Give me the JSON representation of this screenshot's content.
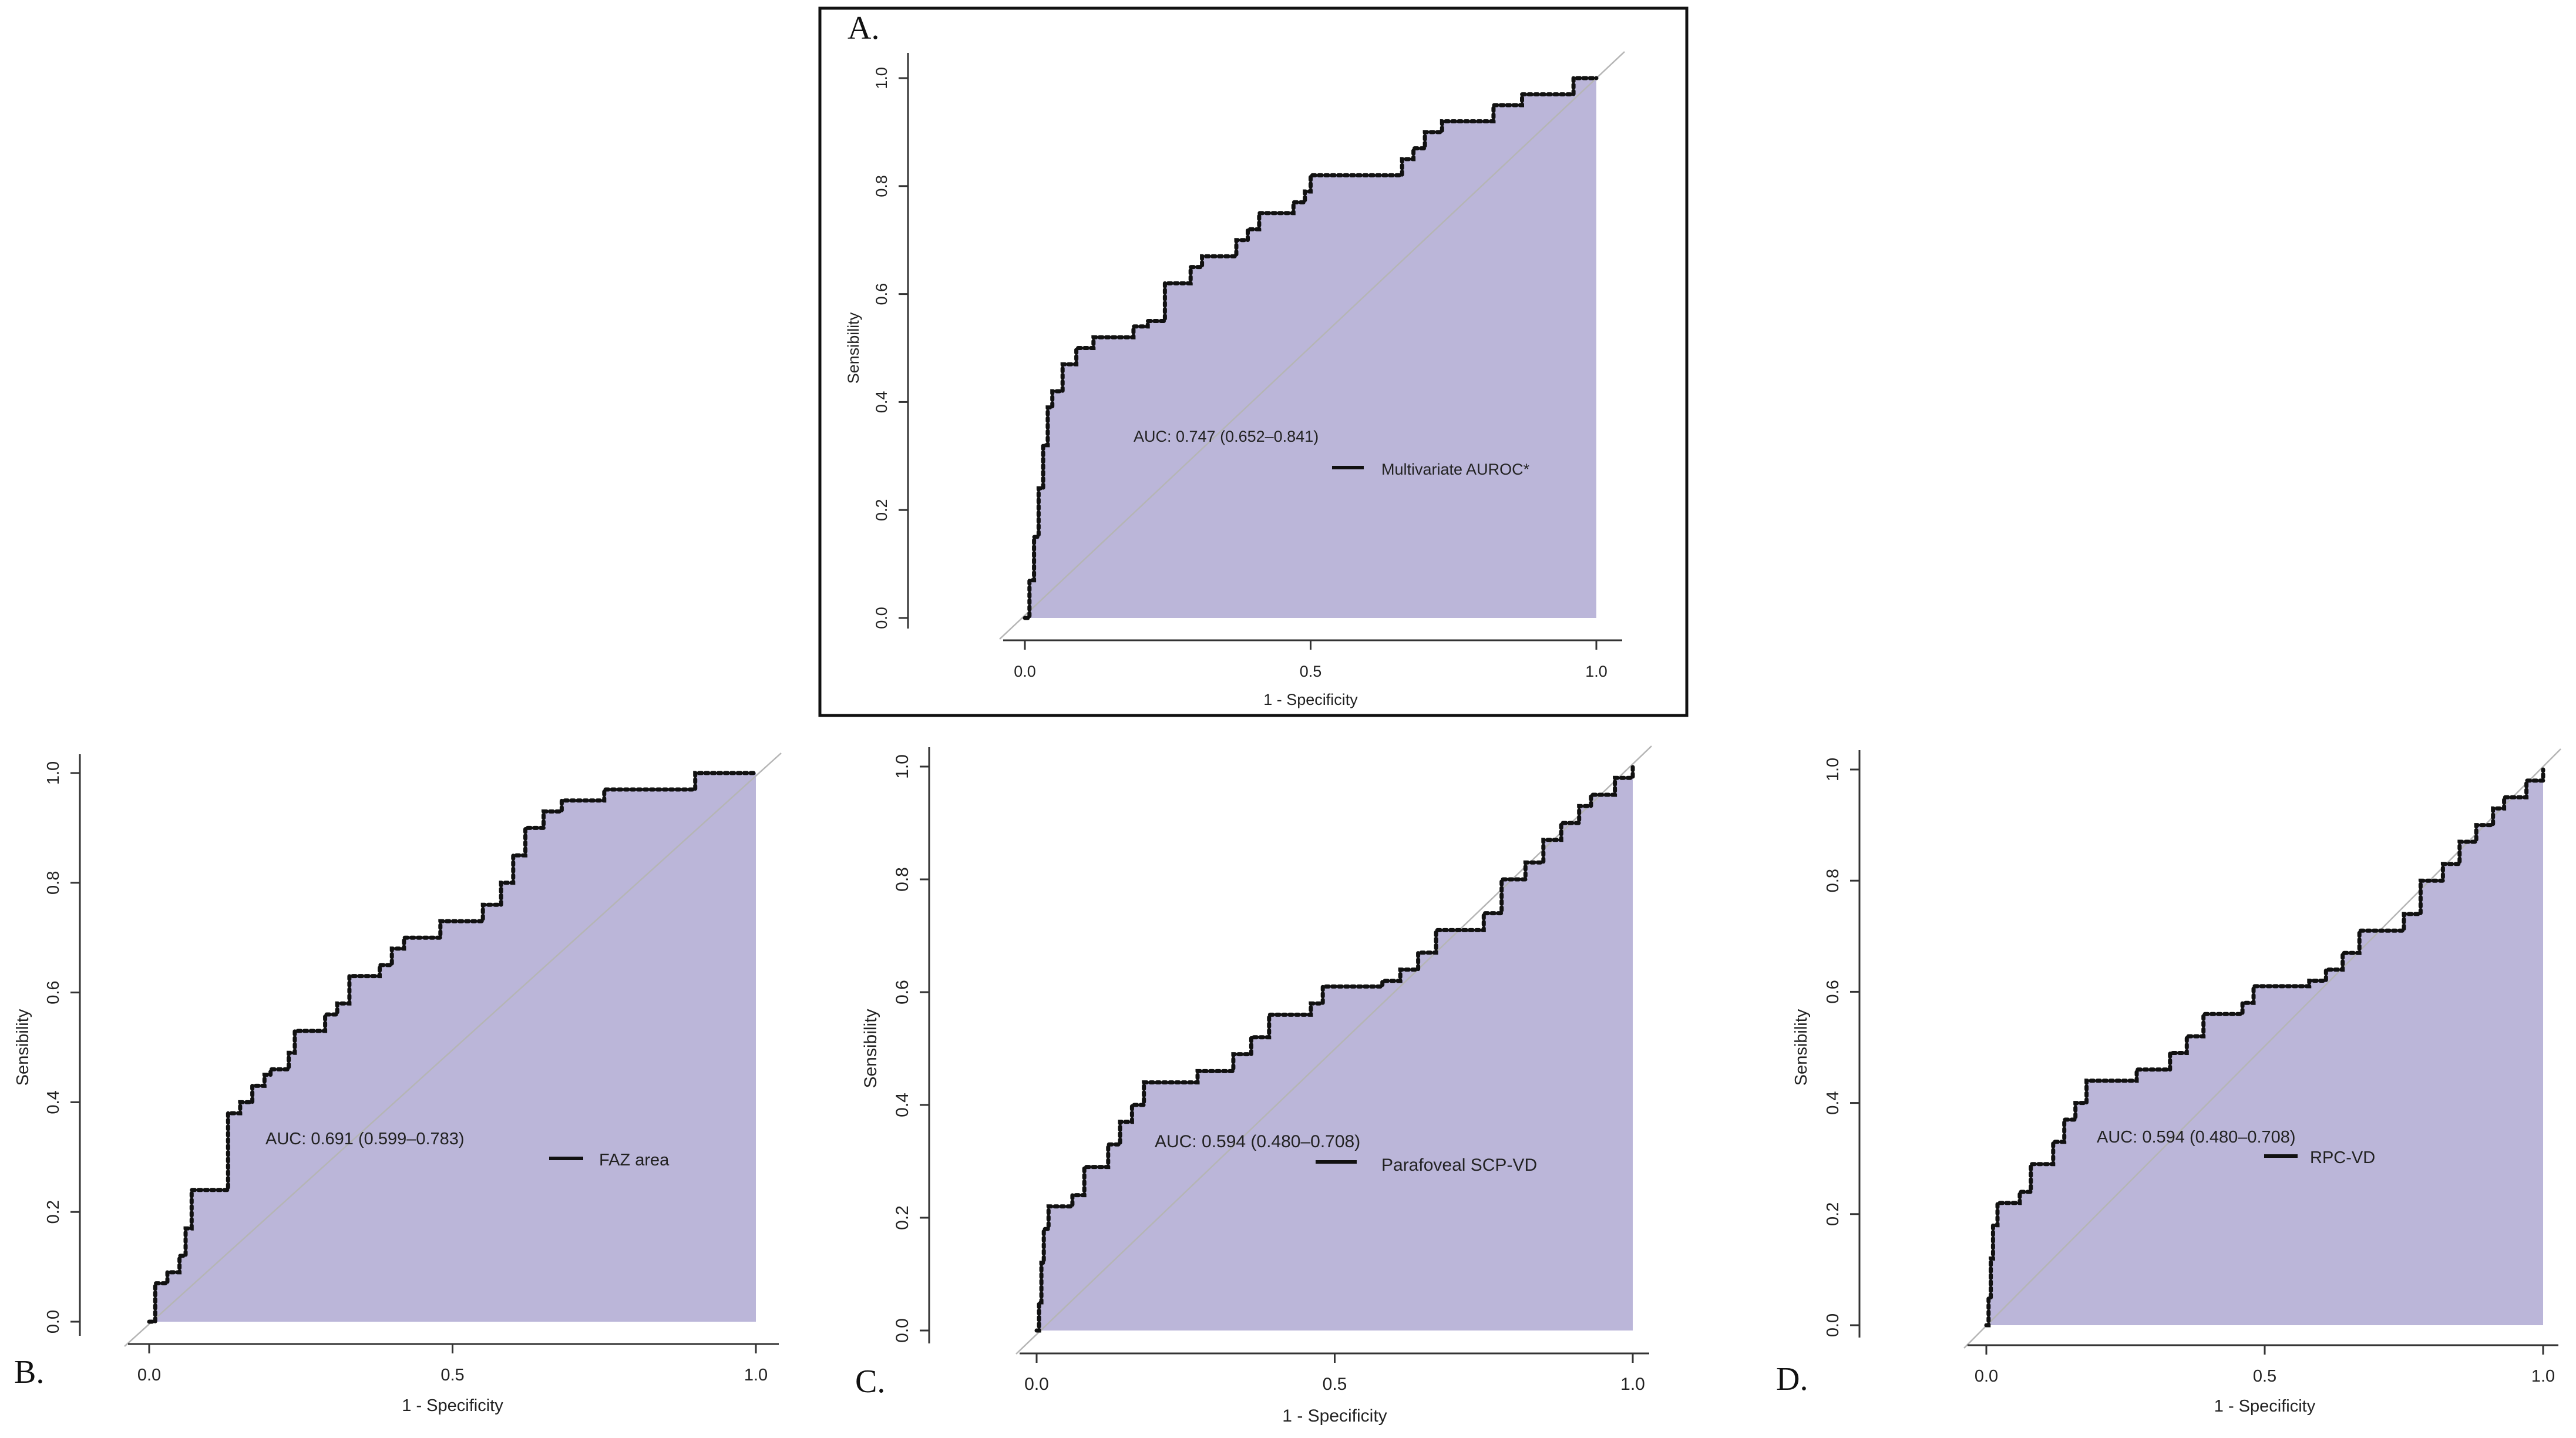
{
  "colors": {
    "fill": "#bbb6d9",
    "curve": "#111111",
    "diagonal": "#b5b5b5",
    "axis": "#333333",
    "frame": "#111111"
  },
  "chart_data": [
    {
      "type": "area",
      "panel_label": "A.",
      "xlabel": "1 - Specificity",
      "ylabel": "Sensibility",
      "xlim": [
        0,
        1
      ],
      "ylim": [
        0,
        1
      ],
      "x_ticks": [
        "0.0",
        "0.5",
        "1.0"
      ],
      "y_ticks": [
        "0.0",
        "0.2",
        "0.4",
        "0.6",
        "0.8",
        "1.0"
      ],
      "annotation": "AUC: 0.747 (0.652–0.841)",
      "legend": "Multivariate AUROC*",
      "series": [
        {
          "x": [
            0,
            0.008,
            0.016,
            0.024,
            0.032,
            0.04,
            0.048,
            0.066,
            0.09,
            0.12,
            0.17,
            0.19,
            0.215,
            0.245,
            0.26,
            0.29,
            0.31,
            0.33,
            0.37,
            0.39,
            0.41,
            0.43,
            0.47,
            0.49,
            0.5,
            0.56,
            0.6,
            0.64,
            0.66,
            0.68,
            0.7,
            0.73,
            0.78,
            0.82,
            0.84,
            0.87,
            0.94,
            0.96,
            1.0
          ],
          "y": [
            0,
            0.07,
            0.15,
            0.24,
            0.32,
            0.39,
            0.42,
            0.47,
            0.5,
            0.52,
            0.52,
            0.54,
            0.55,
            0.62,
            0.62,
            0.65,
            0.67,
            0.67,
            0.7,
            0.72,
            0.75,
            0.75,
            0.77,
            0.79,
            0.82,
            0.82,
            0.82,
            0.82,
            0.85,
            0.87,
            0.9,
            0.92,
            0.92,
            0.95,
            0.95,
            0.97,
            0.97,
            1.0,
            1.0
          ]
        }
      ]
    },
    {
      "type": "area",
      "panel_label": "B.",
      "xlabel": "1 - Specificity",
      "ylabel": "Sensibility",
      "xlim": [
        0,
        1
      ],
      "ylim": [
        0,
        1
      ],
      "x_ticks": [
        "0.0",
        "0.5",
        "1.0"
      ],
      "y_ticks": [
        "0.0",
        "0.2",
        "0.4",
        "0.6",
        "0.8",
        "1.0"
      ],
      "annotation": "AUC: 0.691 (0.599–0.783)",
      "legend": "FAZ area",
      "series": [
        {
          "x": [
            0,
            0.01,
            0.03,
            0.05,
            0.06,
            0.07,
            0.08,
            0.12,
            0.13,
            0.15,
            0.17,
            0.19,
            0.2,
            0.23,
            0.24,
            0.27,
            0.29,
            0.31,
            0.33,
            0.35,
            0.38,
            0.4,
            0.42,
            0.45,
            0.48,
            0.5,
            0.52,
            0.55,
            0.58,
            0.6,
            0.62,
            0.65,
            0.68,
            0.72,
            0.75,
            0.8,
            0.87,
            0.9,
            1.0
          ],
          "y": [
            0,
            0.07,
            0.09,
            0.12,
            0.17,
            0.24,
            0.24,
            0.24,
            0.38,
            0.4,
            0.43,
            0.45,
            0.46,
            0.49,
            0.53,
            0.53,
            0.56,
            0.58,
            0.63,
            0.63,
            0.65,
            0.68,
            0.7,
            0.7,
            0.73,
            0.73,
            0.73,
            0.76,
            0.8,
            0.85,
            0.9,
            0.93,
            0.95,
            0.95,
            0.97,
            0.97,
            0.97,
            1.0,
            1.0
          ]
        }
      ]
    },
    {
      "type": "area",
      "panel_label": "C.",
      "xlabel": "1 - Specificity",
      "ylabel": "Sensibility",
      "xlim": [
        0,
        1
      ],
      "ylim": [
        0,
        1
      ],
      "x_ticks": [
        "0.0",
        "0.5",
        "1.0"
      ],
      "y_ticks": [
        "0.0",
        "0.2",
        "0.4",
        "0.6",
        "0.8",
        "1.0"
      ],
      "annotation": "AUC: 0.594 (0.480–0.708)",
      "legend": "Parafoveal SCP-VD",
      "series": [
        {
          "x": [
            0,
            0.004,
            0.008,
            0.012,
            0.02,
            0.06,
            0.08,
            0.1,
            0.12,
            0.14,
            0.16,
            0.18,
            0.25,
            0.27,
            0.3,
            0.33,
            0.36,
            0.39,
            0.42,
            0.46,
            0.48,
            0.5,
            0.55,
            0.58,
            0.61,
            0.64,
            0.67,
            0.73,
            0.75,
            0.78,
            0.82,
            0.85,
            0.88,
            0.91,
            0.93,
            0.97,
            1.0
          ],
          "y": [
            0,
            0.05,
            0.12,
            0.18,
            0.22,
            0.24,
            0.29,
            0.29,
            0.33,
            0.37,
            0.4,
            0.44,
            0.44,
            0.46,
            0.46,
            0.49,
            0.52,
            0.56,
            0.56,
            0.58,
            0.61,
            0.61,
            0.61,
            0.62,
            0.64,
            0.67,
            0.71,
            0.71,
            0.74,
            0.8,
            0.83,
            0.87,
            0.9,
            0.93,
            0.95,
            0.98,
            1.0
          ]
        }
      ]
    },
    {
      "type": "area",
      "panel_label": "D.",
      "xlabel": "1 - Specificity",
      "ylabel": "Sensibility",
      "xlim": [
        0,
        1
      ],
      "ylim": [
        0,
        1
      ],
      "x_ticks": [
        "0.0",
        "0.5",
        "1.0"
      ],
      "y_ticks": [
        "0.0",
        "0.2",
        "0.4",
        "0.6",
        "0.8",
        "1.0"
      ],
      "annotation": "AUC: 0.594 (0.480–0.708)",
      "legend": "RPC-VD",
      "series": [
        {
          "x": [
            0,
            0.004,
            0.008,
            0.012,
            0.02,
            0.06,
            0.08,
            0.1,
            0.12,
            0.14,
            0.16,
            0.18,
            0.25,
            0.27,
            0.3,
            0.33,
            0.36,
            0.39,
            0.42,
            0.46,
            0.48,
            0.5,
            0.55,
            0.58,
            0.61,
            0.64,
            0.67,
            0.73,
            0.75,
            0.78,
            0.82,
            0.85,
            0.88,
            0.91,
            0.93,
            0.97,
            1.0
          ],
          "y": [
            0,
            0.05,
            0.12,
            0.18,
            0.22,
            0.24,
            0.29,
            0.29,
            0.33,
            0.37,
            0.4,
            0.44,
            0.44,
            0.46,
            0.46,
            0.49,
            0.52,
            0.56,
            0.56,
            0.58,
            0.61,
            0.61,
            0.61,
            0.62,
            0.64,
            0.67,
            0.71,
            0.71,
            0.74,
            0.8,
            0.83,
            0.87,
            0.9,
            0.93,
            0.95,
            0.98,
            1.0
          ]
        }
      ]
    }
  ]
}
